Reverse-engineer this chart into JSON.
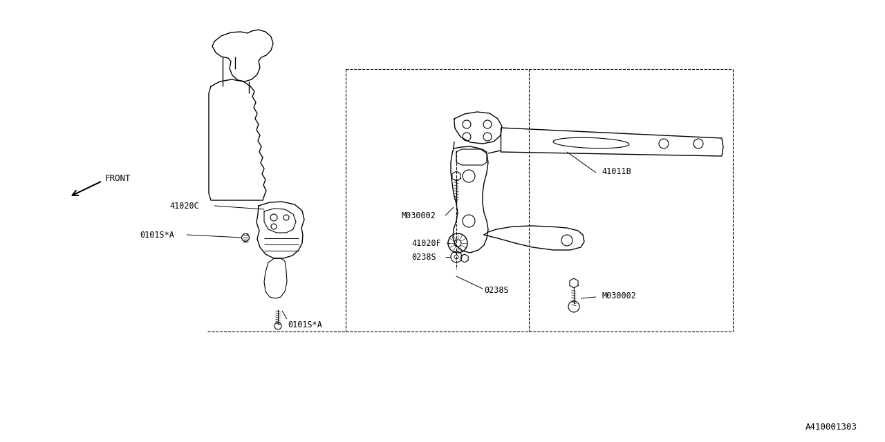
{
  "bg_color": "#ffffff",
  "line_color": "#000000",
  "lw": 1.0,
  "font_size": 8.5,
  "diagram_id": "A410001303",
  "labels": {
    "front": "FRONT",
    "41020C": "41020C",
    "0101SA_1": "0101S*A",
    "0101SA_2": "0101S*A",
    "41011B": "41011B",
    "M030002_1": "M030002",
    "M030002_2": "M030002",
    "41020F": "41020F",
    "0238S_1": "0238S",
    "0238S_2": "0238S"
  }
}
